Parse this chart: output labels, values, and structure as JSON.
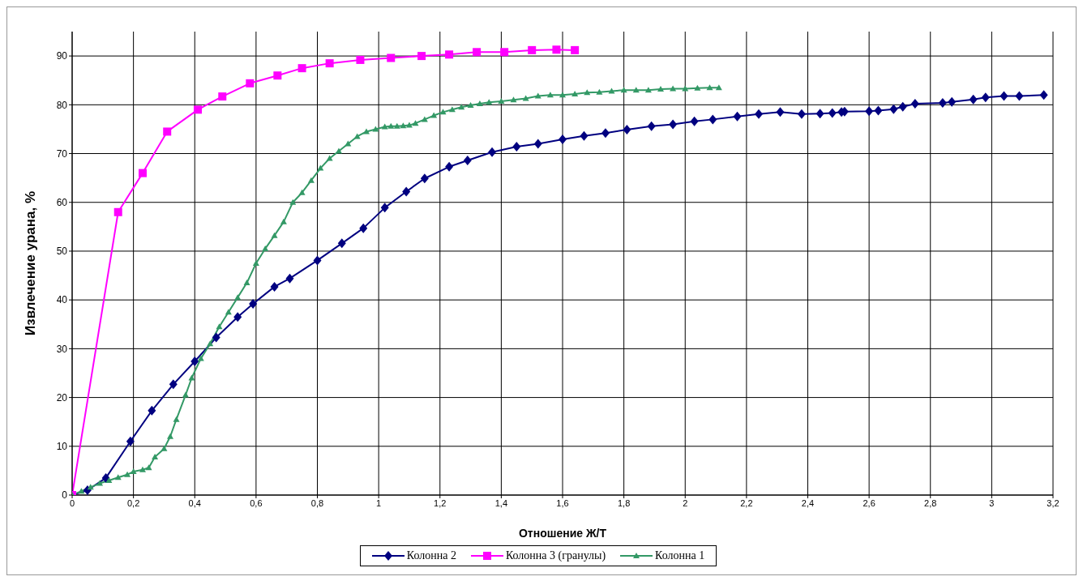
{
  "chart_data": {
    "type": "line",
    "xlabel": "Отношение Ж/Т",
    "ylabel": "Извлечение урана, %",
    "xlim": [
      0,
      3.2
    ],
    "xticks": [
      0,
      {
        "value": 0.2,
        "label": "0,2"
      },
      {
        "value": 0.4,
        "label": "0,4"
      },
      {
        "value": 0.6,
        "label": "0,6"
      },
      {
        "value": 0.8,
        "label": "0,8"
      },
      1,
      {
        "value": 1.2,
        "label": "1,2"
      },
      {
        "value": 1.4,
        "label": "1,4"
      },
      {
        "value": 1.6,
        "label": "1,6"
      },
      {
        "value": 1.8,
        "label": "1,8"
      },
      2,
      {
        "value": 2.2,
        "label": "2,2"
      },
      {
        "value": 2.4,
        "label": "2,4"
      },
      {
        "value": 2.6,
        "label": "2,6"
      },
      {
        "value": 2.8,
        "label": "2,8"
      },
      3,
      {
        "value": 3.2,
        "label": "3,2"
      }
    ],
    "ylim": [
      0,
      95
    ],
    "yticks": [
      0,
      10,
      20,
      30,
      40,
      50,
      60,
      70,
      80,
      90
    ],
    "grid": true,
    "legend": "bottom",
    "line_style": "solid",
    "series": [
      {
        "name": "Колонна 2",
        "color": "#000080",
        "marker": "diamond",
        "x": [
          0,
          0.05,
          0.11,
          0.19,
          0.26,
          0.33,
          0.4,
          0.47,
          0.54,
          0.59,
          0.66,
          0.71,
          0.8,
          0.88,
          0.95,
          1.02,
          1.09,
          1.15,
          1.23,
          1.29,
          1.37,
          1.45,
          1.52,
          1.6,
          1.67,
          1.74,
          1.81,
          1.89,
          1.96,
          2.03,
          2.09,
          2.17,
          2.24,
          2.31,
          2.38,
          2.44,
          2.48,
          2.51,
          2.52,
          2.6,
          2.63,
          2.68,
          2.71,
          2.75,
          2.84,
          2.87,
          2.94,
          2.98,
          3.04,
          3.09,
          3.17
        ],
        "values": [
          0,
          1,
          3.5,
          11,
          17.3,
          22.7,
          27.4,
          32.3,
          36.5,
          39.2,
          42.7,
          44.4,
          48.1,
          51.6,
          54.7,
          58.9,
          62.2,
          64.9,
          67.3,
          68.6,
          70.3,
          71.4,
          72,
          72.9,
          73.6,
          74.2,
          74.9,
          75.6,
          76,
          76.6,
          77,
          77.6,
          78.1,
          78.5,
          78.1,
          78.2,
          78.3,
          78.5,
          78.6,
          78.7,
          78.8,
          79.1,
          79.6,
          80.2,
          80.4,
          80.6,
          81.1,
          81.5,
          81.8,
          81.8,
          82
        ]
      },
      {
        "name": "Колонна 3 (гранулы)",
        "color": "#ff00ff",
        "marker": "square",
        "x": [
          0,
          0.15,
          0.23,
          0.31,
          0.41,
          0.49,
          0.58,
          0.67,
          0.75,
          0.84,
          0.94,
          1.04,
          1.14,
          1.23,
          1.32,
          1.41,
          1.5,
          1.58,
          1.64
        ],
        "values": [
          0,
          58,
          66,
          74.5,
          79,
          81.7,
          84.4,
          86,
          87.5,
          88.5,
          89.2,
          89.6,
          90,
          90.3,
          90.8,
          90.8,
          91.2,
          91.3,
          91.2
        ]
      },
      {
        "name": "Колонна 1",
        "color": "#339966",
        "marker": "triangle",
        "x": [
          0,
          0.03,
          0.06,
          0.09,
          0.12,
          0.15,
          0.18,
          0.2,
          0.23,
          0.25,
          0.27,
          0.3,
          0.32,
          0.34,
          0.37,
          0.39,
          0.42,
          0.45,
          0.48,
          0.51,
          0.54,
          0.57,
          0.6,
          0.63,
          0.66,
          0.69,
          0.72,
          0.75,
          0.78,
          0.81,
          0.84,
          0.87,
          0.9,
          0.93,
          0.96,
          0.99,
          1.02,
          1.04,
          1.06,
          1.08,
          1.1,
          1.12,
          1.15,
          1.18,
          1.21,
          1.24,
          1.27,
          1.3,
          1.33,
          1.36,
          1.4,
          1.44,
          1.48,
          1.52,
          1.56,
          1.6,
          1.64,
          1.68,
          1.72,
          1.76,
          1.8,
          1.84,
          1.88,
          1.92,
          1.96,
          2,
          2.04,
          2.08,
          2.11
        ],
        "values": [
          0,
          0.8,
          1.6,
          2.4,
          3,
          3.6,
          4.2,
          4.8,
          5.2,
          5.6,
          7.8,
          9.5,
          12,
          15.5,
          20.5,
          24,
          28,
          31,
          34.5,
          37.5,
          40.5,
          43.5,
          47.5,
          50.5,
          53.2,
          56,
          60,
          62,
          64.5,
          67,
          69,
          70.5,
          72,
          73.5,
          74.5,
          75,
          75.5,
          75.6,
          75.6,
          75.7,
          75.8,
          76.2,
          77,
          77.8,
          78.5,
          79,
          79.5,
          79.9,
          80.2,
          80.5,
          80.7,
          81,
          81.3,
          81.8,
          82,
          82,
          82.2,
          82.5,
          82.6,
          82.8,
          83,
          83,
          83,
          83.2,
          83.3,
          83.3,
          83.4,
          83.5,
          83.5
        ]
      }
    ]
  }
}
